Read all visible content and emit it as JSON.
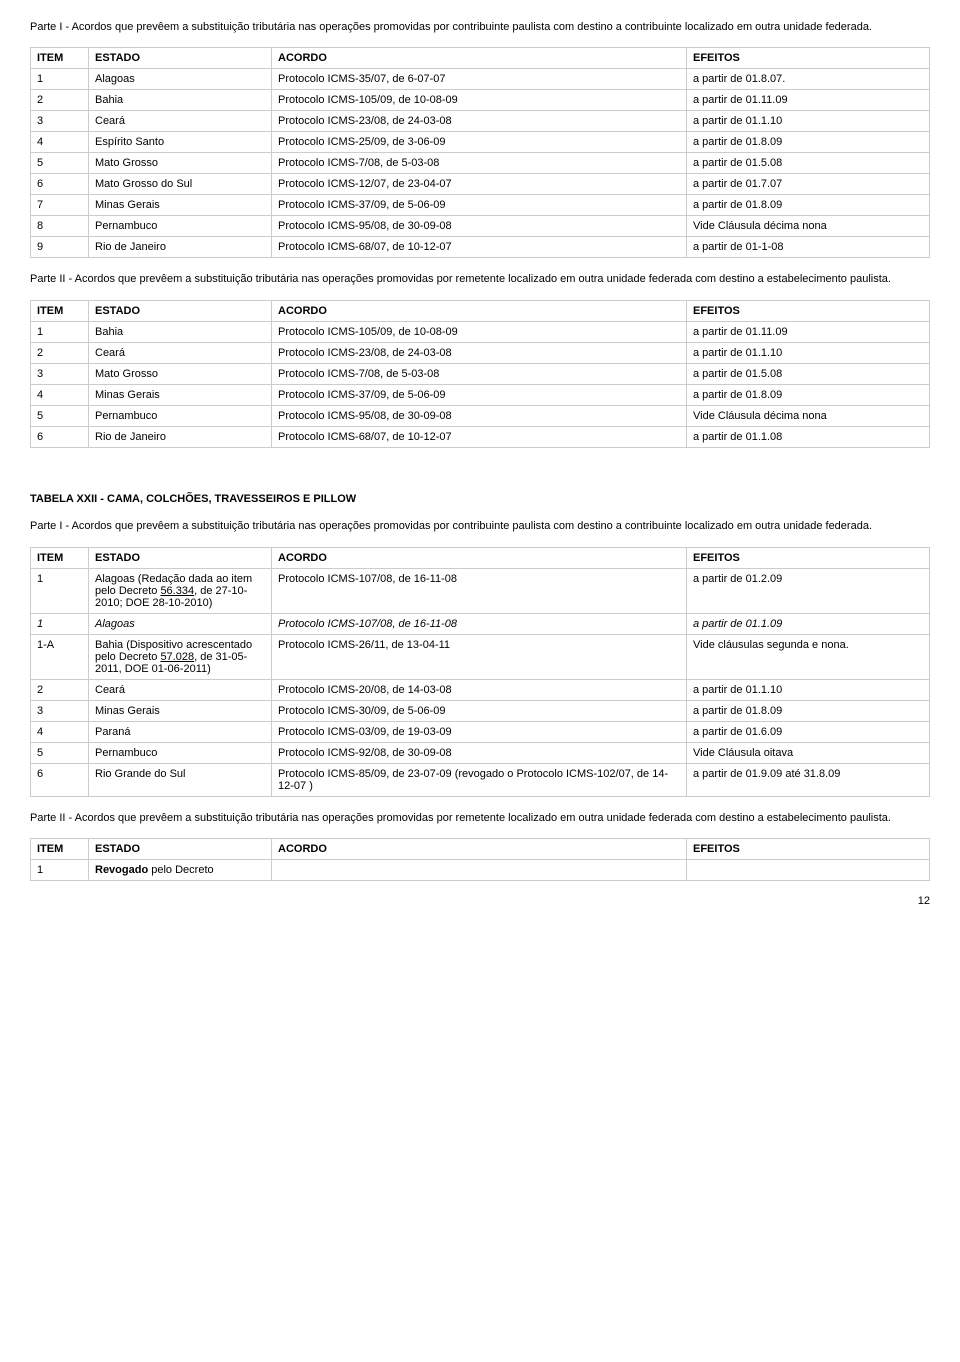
{
  "parte1_intro": "Parte I - Acordos que prevêem a substituição tributária nas operações promovidas por contribuinte paulista com destino a contribuinte localizado em outra unidade federada.",
  "headers": {
    "item": "ITEM",
    "estado": "ESTADO",
    "acordo": "ACORDO",
    "efeitos": "EFEITOS"
  },
  "table1": [
    {
      "item": "1",
      "estado": "Alagoas",
      "acordo": "Protocolo ICMS-35/07, de 6-07-07",
      "efeitos": "a partir de 01.8.07."
    },
    {
      "item": "2",
      "estado": "Bahia",
      "acordo": "Protocolo ICMS-105/09, de 10-08-09",
      "efeitos": "a partir de 01.11.09"
    },
    {
      "item": "3",
      "estado": "Ceará",
      "acordo": "Protocolo ICMS-23/08, de 24-03-08",
      "efeitos": "a partir de 01.1.10"
    },
    {
      "item": "4",
      "estado": "Espírito Santo",
      "acordo": "Protocolo ICMS-25/09, de 3-06-09",
      "efeitos": "a partir de 01.8.09"
    },
    {
      "item": "5",
      "estado": "Mato Grosso",
      "acordo": "Protocolo ICMS-7/08, de 5-03-08",
      "efeitos": "a partir de 01.5.08"
    },
    {
      "item": "6",
      "estado": "Mato Grosso do Sul",
      "acordo": "Protocolo ICMS-12/07, de 23-04-07",
      "efeitos": "a partir de 01.7.07"
    },
    {
      "item": "7",
      "estado": "Minas Gerais",
      "acordo": "Protocolo ICMS-37/09, de 5-06-09",
      "efeitos": "a partir de 01.8.09"
    },
    {
      "item": "8",
      "estado": "Pernambuco",
      "acordo": "Protocolo ICMS-95/08, de 30-09-08",
      "efeitos": "Vide Cláusula décima nona"
    },
    {
      "item": "9",
      "estado": "Rio de Janeiro",
      "acordo": "Protocolo ICMS-68/07, de 10-12-07",
      "efeitos": "a partir de 01-1-08"
    }
  ],
  "parte2_intro": "Parte II - Acordos que prevêem a substituição tributária nas operações promovidas por remetente localizado em outra unidade federada com destino a estabelecimento paulista.",
  "table2": [
    {
      "item": "1",
      "estado": "Bahia",
      "acordo": "Protocolo ICMS-105/09, de 10-08-09",
      "efeitos": "a partir de 01.11.09"
    },
    {
      "item": "2",
      "estado": "Ceará",
      "acordo": "Protocolo ICMS-23/08, de 24-03-08",
      "efeitos": "a partir de 01.1.10"
    },
    {
      "item": "3",
      "estado": "Mato Grosso",
      "acordo": "Protocolo ICMS-7/08, de 5-03-08",
      "efeitos": "a partir de 01.5.08"
    },
    {
      "item": "4",
      "estado": "Minas Gerais",
      "acordo": "Protocolo ICMS-37/09, de 5-06-09",
      "efeitos": "a partir de 01.8.09"
    },
    {
      "item": "5",
      "estado": "Pernambuco",
      "acordo": "Protocolo ICMS-95/08, de 30-09-08",
      "efeitos": "Vide Cláusula décima nona"
    },
    {
      "item": "6",
      "estado": "Rio de Janeiro",
      "acordo": "Protocolo ICMS-68/07, de 10-12-07",
      "efeitos": "a partir de 01.1.08"
    }
  ],
  "tabela22_title": "TABELA XXII - CAMA, COLCHÕES, TRAVESSEIROS E PILLOW",
  "parte1b_intro": "Parte I - Acordos que prevêem a substituição tributária nas operações promovidas por contribuinte paulista com destino a contribuinte localizado em outra unidade federada.",
  "table3": {
    "r0": {
      "item": "1",
      "estado_pre": "Alagoas (Redação dada ao item pelo Decreto ",
      "estado_link": "56.334",
      "estado_post": ", de 27-10-2010; DOE 28-10-2010)",
      "acordo": "Protocolo ICMS-107/08, de 16-11-08",
      "efeitos": "a partir de 01.2.09"
    },
    "r1": {
      "item": "1",
      "estado": "Alagoas",
      "acordo": "Protocolo ICMS-107/08, de 16-11-08",
      "efeitos": "a partir de 01.1.09"
    },
    "r2": {
      "item": "1-A",
      "estado_pre": "Bahia (Dispositivo acrescentado pelo Decreto ",
      "estado_link": "57.028",
      "estado_post": ", de 31-05-2011, DOE 01-06-2011)",
      "acordo": "Protocolo ICMS-26/11, de 13-04-11",
      "efeitos": "Vide cláusulas segunda e nona."
    },
    "r3": {
      "item": "2",
      "estado": "Ceará",
      "acordo": "Protocolo ICMS-20/08, de 14-03-08",
      "efeitos": "a partir de 01.1.10"
    },
    "r4": {
      "item": "3",
      "estado": "Minas Gerais",
      "acordo": "Protocolo ICMS-30/09, de 5-06-09",
      "efeitos": "a partir de 01.8.09"
    },
    "r5": {
      "item": "4",
      "estado": "Paraná",
      "acordo": "Protocolo ICMS-03/09, de 19-03-09",
      "efeitos": "a partir de 01.6.09"
    },
    "r6": {
      "item": "5",
      "estado": "Pernambuco",
      "acordo": "Protocolo ICMS-92/08, de 30-09-08",
      "efeitos": "Vide Cláusula oitava"
    },
    "r7": {
      "item": "6",
      "estado": "Rio Grande do Sul",
      "acordo": "Protocolo ICMS-85/09, de 23-07-09 (revogado o Protocolo ICMS-102/07, de 14-12-07 )",
      "efeitos": "a partir de 01.9.09 até 31.8.09"
    }
  },
  "parte2b_intro": "Parte II - Acordos que prevêem a substituição tributária nas operações promovidas por remetente localizado em outra unidade federada com destino a estabelecimento paulista.",
  "table4": {
    "r0": {
      "item": "1",
      "estado_pre": "Revogado",
      "estado_post": " pelo Decreto"
    }
  },
  "pagenum": "12"
}
